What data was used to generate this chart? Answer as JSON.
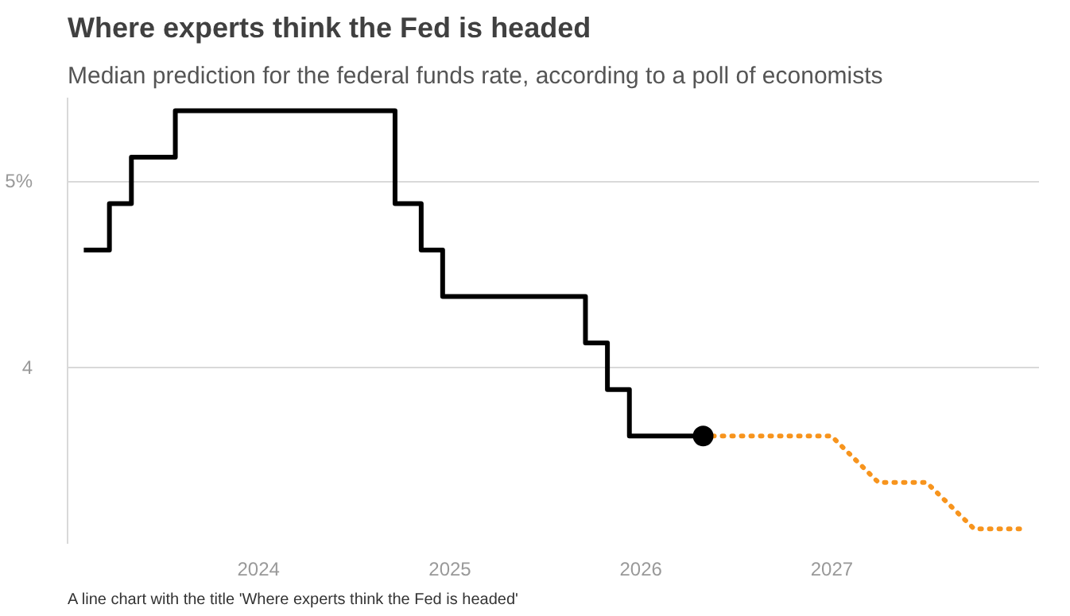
{
  "chart_data": {
    "type": "step",
    "title": "Where experts think the Fed is headed",
    "subtitle": "Median prediction for the federal funds rate, according to a poll of economists",
    "annotations": [
      "A line chart with the title 'Where experts think the Fed is headed'"
    ],
    "series": [
      {
        "color": "#000000",
        "line_style": "solid",
        "x": [
          "2023-02-01",
          "2023-03-22",
          "2023-05-03",
          "2023-07-26",
          "2024-09-18",
          "2024-11-07",
          "2024-12-18",
          "2025-09-17",
          "2025-10-29",
          "2025-12-10",
          "2026-04-30"
        ],
        "values": [
          4.63,
          4.88,
          5.13,
          5.38,
          4.88,
          4.63,
          4.38,
          4.13,
          3.88,
          3.63,
          3.63
        ]
      },
      {
        "type": "line",
        "color": "#f7941d",
        "line_style": "dotted",
        "x": [
          "2026-04-30",
          "2026-12-31",
          "2027-03-31",
          "2027-07-01",
          "2027-09-30",
          "2028-01-01"
        ],
        "values": [
          3.63,
          3.63,
          3.38,
          3.38,
          3.13,
          3.13
        ]
      },
      {
        "type": "scatter",
        "color": "#000000",
        "marker": "circle",
        "x": [
          "2026-04-30"
        ],
        "values": [
          3.63
        ]
      }
    ],
    "xlim": [
      "2023-01-01",
      "2028-02-01"
    ],
    "xticks": [
      {
        "value": "2024-01-01",
        "label": "2024"
      },
      {
        "value": "2025-01-01",
        "label": "2025"
      },
      {
        "value": "2026-01-01",
        "label": "2026"
      },
      {
        "value": "2027-01-01",
        "label": "2027"
      }
    ],
    "yticks": [
      {
        "value": 4,
        "label": "4"
      },
      {
        "value": 5,
        "label": "5%"
      }
    ],
    "ylim": [
      3.05,
      5.45
    ],
    "grid": "y"
  }
}
